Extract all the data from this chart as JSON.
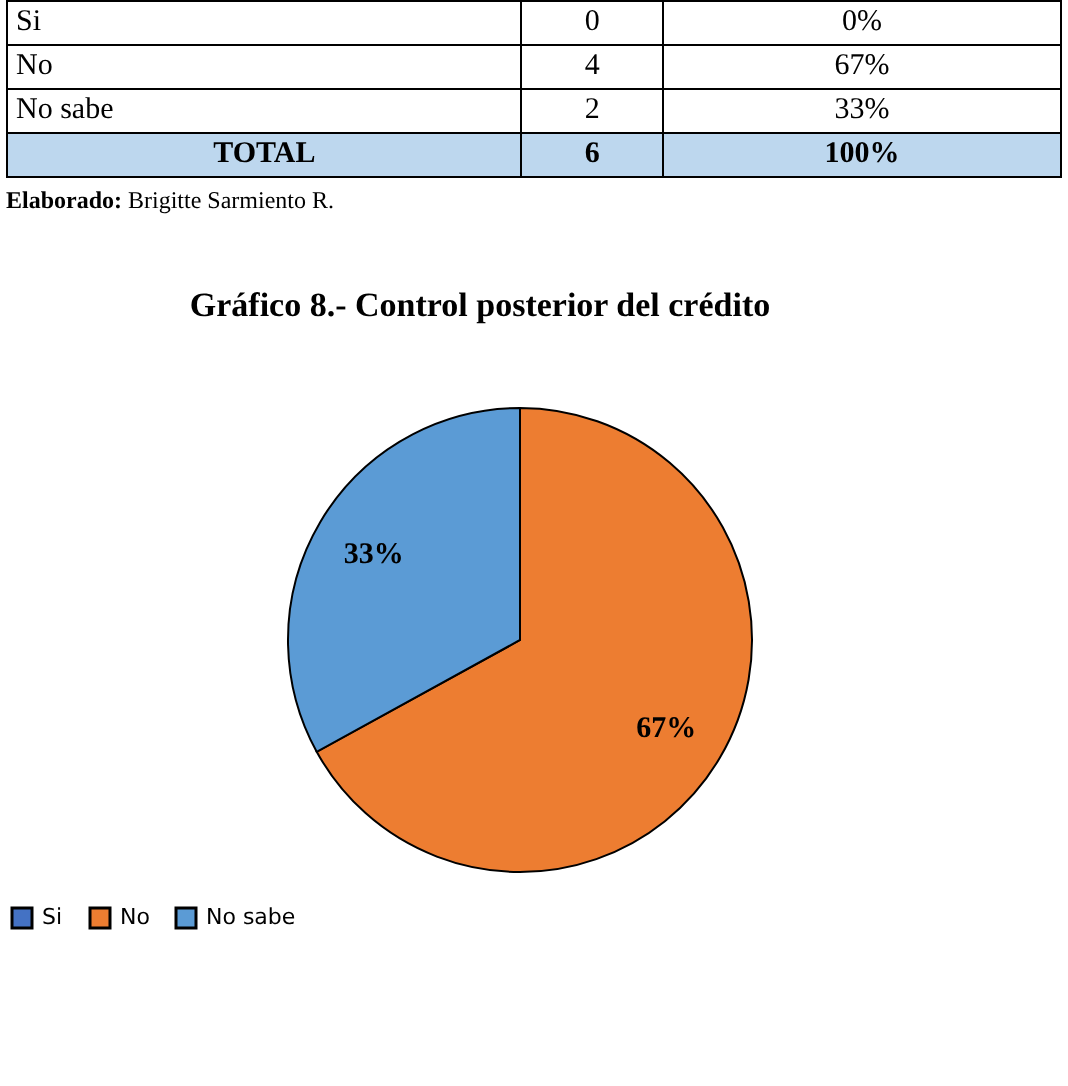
{
  "chart_data": {
    "type": "pie",
    "title": "Gráfico  8.- Control posterior del crédito",
    "categories": [
      "Si",
      "No",
      "No sabe"
    ],
    "values": [
      0,
      67,
      33
    ],
    "colors": [
      "#4472c4",
      "#ed7d31",
      "#5b9bd5"
    ],
    "value_labels": [
      null,
      "67%",
      "33%"
    ],
    "legend": "bottom",
    "annotations": [
      "Si",
      "0",
      "0%",
      "No",
      "4",
      "67%",
      "No sabe",
      "2",
      "33%",
      "TOTAL",
      "6",
      "100%",
      "Elaborado: Brigitte Sarmiento R."
    ]
  }
}
